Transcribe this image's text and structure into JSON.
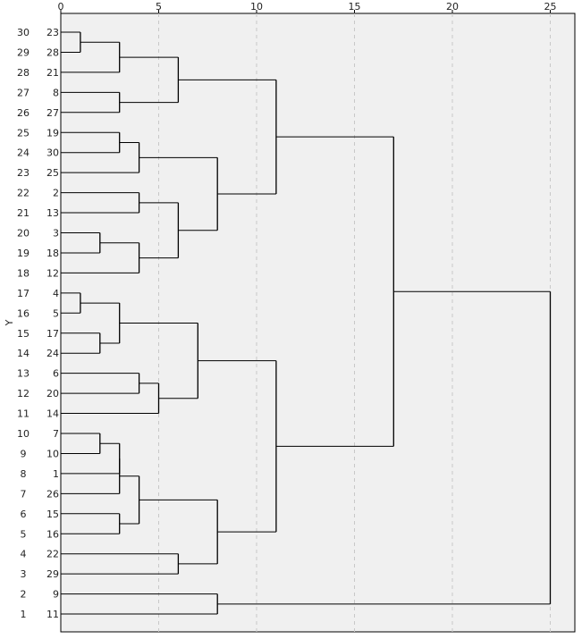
{
  "chart_data": {
    "type": "dendrogram",
    "orientation": "horizontal",
    "xlabel": "",
    "ylabel": "Y",
    "xlim": [
      0,
      26
    ],
    "x_ticks": [
      0,
      5,
      10,
      15,
      20,
      25
    ],
    "grid": "vertical dashed",
    "y_ticks": [
      30,
      29,
      28,
      27,
      26,
      25,
      24,
      23,
      22,
      21,
      20,
      19,
      18,
      17,
      16,
      15,
      14,
      13,
      12,
      11,
      10,
      9,
      8,
      7,
      6,
      5,
      4,
      3,
      2,
      1
    ],
    "leaves": [
      23,
      28,
      21,
      8,
      27,
      19,
      30,
      25,
      2,
      13,
      3,
      18,
      12,
      4,
      5,
      17,
      24,
      6,
      20,
      14,
      7,
      10,
      1,
      26,
      15,
      16,
      22,
      29,
      9,
      11
    ],
    "merges": [
      {
        "children": [
          "L:23",
          "L:28"
        ],
        "height": 1,
        "id": "m1"
      },
      {
        "children": [
          "L:4",
          "L:5"
        ],
        "height": 1,
        "id": "m2"
      },
      {
        "children": [
          "L:3",
          "L:18"
        ],
        "height": 2,
        "id": "m3"
      },
      {
        "children": [
          "L:17",
          "L:24"
        ],
        "height": 2,
        "id": "m4"
      },
      {
        "children": [
          "L:7",
          "L:10"
        ],
        "height": 2,
        "id": "m5"
      },
      {
        "children": [
          "m1",
          "L:21"
        ],
        "height": 3,
        "id": "m6"
      },
      {
        "children": [
          "L:8",
          "L:27"
        ],
        "height": 3,
        "id": "m7"
      },
      {
        "children": [
          "L:19",
          "L:30"
        ],
        "height": 3,
        "id": "m8"
      },
      {
        "children": [
          "m2",
          "m4"
        ],
        "height": 3,
        "id": "m9"
      },
      {
        "children": [
          "m5",
          "L:1"
        ],
        "height": 3,
        "id": "m10"
      },
      {
        "children": [
          "L:15",
          "L:16"
        ],
        "height": 3,
        "id": "m11"
      },
      {
        "children": [
          "m8",
          "L:25"
        ],
        "height": 4,
        "id": "m12"
      },
      {
        "children": [
          "L:2",
          "L:13"
        ],
        "height": 4,
        "id": "m13"
      },
      {
        "children": [
          "m3",
          "L:12"
        ],
        "height": 4,
        "id": "m14"
      },
      {
        "children": [
          "L:6",
          "L:20"
        ],
        "height": 4,
        "id": "m15"
      },
      {
        "children": [
          "m10",
          "L:26"
        ],
        "height": 3,
        "id": "m16"
      },
      {
        "children": [
          "m16",
          "m11"
        ],
        "height": 4,
        "id": "m17"
      },
      {
        "children": [
          "m15",
          "L:14"
        ],
        "height": 5,
        "id": "m18"
      },
      {
        "children": [
          "m6",
          "m7"
        ],
        "height": 6,
        "id": "m19"
      },
      {
        "children": [
          "m13",
          "m14"
        ],
        "height": 6,
        "id": "m20"
      },
      {
        "children": [
          "L:22",
          "L:29"
        ],
        "height": 6,
        "id": "m21"
      },
      {
        "children": [
          "m9",
          "m18"
        ],
        "height": 7,
        "id": "m22"
      },
      {
        "children": [
          "m12",
          "m20"
        ],
        "height": 8,
        "id": "m23"
      },
      {
        "children": [
          "m17",
          "m21"
        ],
        "height": 8,
        "id": "m24"
      },
      {
        "children": [
          "L:9",
          "L:11"
        ],
        "height": 8,
        "id": "m25"
      },
      {
        "children": [
          "m19",
          "m23"
        ],
        "height": 11,
        "id": "m26"
      },
      {
        "children": [
          "m22",
          "m24"
        ],
        "height": 11,
        "id": "m27"
      },
      {
        "children": [
          "m26",
          "m27"
        ],
        "height": 17,
        "id": "m28"
      },
      {
        "children": [
          "m28",
          "m25"
        ],
        "height": 25,
        "id": "m29"
      }
    ]
  },
  "colors": {
    "plot_background": "#f0f0f0",
    "line": "#000000",
    "grid": "#c8c8c8",
    "text": "#222222"
  }
}
